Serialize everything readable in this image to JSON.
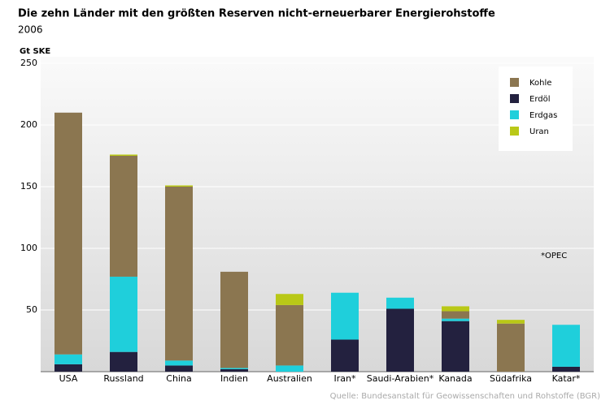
{
  "chart_data": {
    "type": "stacked_bar",
    "title": "Die zehn Länder mit den größten Reserven nicht-erneuerbarer Energierohstoffe",
    "subtitle": "2006",
    "y_axis_label": "Gt SKE",
    "annotation": "*OPEC",
    "source": "Quelle: Bundesanstalt für Geowissenschaften und Rohstoffe (BGR)",
    "categories": [
      "USA",
      "Russland",
      "China",
      "Indien",
      "Australien",
      "Iran*",
      "Saudi-Arabien*",
      "Kanada",
      "Südafrika",
      "Katar*"
    ],
    "series": [
      {
        "name": "Erdöl",
        "color": "#23213f",
        "values": [
          6,
          16,
          5,
          2,
          0,
          26,
          51,
          41,
          0,
          4
        ]
      },
      {
        "name": "Erdgas",
        "color": "#1fcfdb",
        "values": [
          8,
          61,
          4,
          1,
          5,
          38,
          9,
          2,
          0,
          34
        ]
      },
      {
        "name": "Kohle",
        "color": "#8b7650",
        "values": [
          196,
          98,
          141,
          78,
          49,
          0,
          0,
          6,
          39,
          0
        ]
      },
      {
        "name": "Uran",
        "color": "#b9c817",
        "values": [
          0,
          1,
          1,
          0,
          9,
          0,
          0,
          4,
          3,
          0
        ]
      }
    ],
    "legend_order": [
      2,
      0,
      1,
      3
    ],
    "legend_position": "top-right",
    "ylim": [
      0,
      250
    ],
    "yticks": [
      50,
      100,
      150,
      200,
      250
    ],
    "grid": true
  }
}
